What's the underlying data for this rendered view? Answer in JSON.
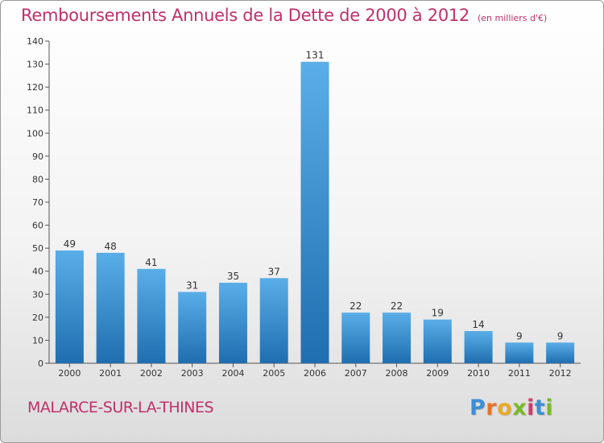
{
  "title": "Remboursements Annuels de la Dette de 2000 à 2012",
  "unit": "(en milliers d'€)",
  "commune": "MALARCE-SUR-LA-THINES",
  "logo": {
    "letters": [
      "P",
      "r",
      "o",
      "x",
      "i",
      "t",
      "i"
    ],
    "colors": [
      "#3d8fd6",
      "#e8732a",
      "#e8a92a",
      "#7ab829",
      "#d63a6a",
      "#3d8fd6",
      "#7ab829"
    ]
  },
  "colors": {
    "title": "#c0306a",
    "bar_light": "#5aaee8",
    "bar_dark": "#1f6eb0",
    "label": "#333333"
  },
  "chart_data": {
    "type": "bar",
    "categories": [
      "2000",
      "2001",
      "2002",
      "2003",
      "2004",
      "2005",
      "2006",
      "2007",
      "2008",
      "2009",
      "2010",
      "2011",
      "2012"
    ],
    "values": [
      49,
      48,
      41,
      31,
      35,
      37,
      131,
      22,
      22,
      19,
      14,
      9,
      9
    ],
    "data_labels": [
      "49",
      "48",
      "41",
      "31",
      "35",
      "37",
      "131",
      "22",
      "22",
      "19",
      "14",
      "9",
      "9"
    ],
    "y_ticks": [
      0,
      10,
      20,
      30,
      40,
      50,
      60,
      70,
      80,
      90,
      100,
      110,
      120,
      130,
      140
    ],
    "ylim": [
      0,
      140
    ],
    "grid": false,
    "xlabel": "",
    "ylabel": ""
  }
}
